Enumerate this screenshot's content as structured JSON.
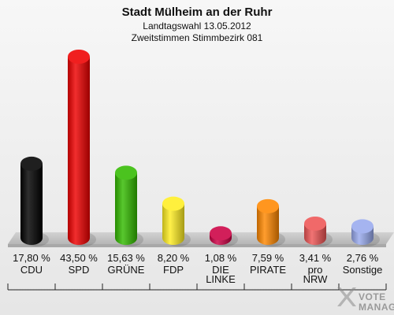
{
  "chart_data": {
    "type": "bar",
    "title": "Stadt Mülheim an der Ruhr",
    "subtitle_1": "Landtagswahl 13.05.2012",
    "subtitle_2": "Zweitstimmen Stimmbezirk 081",
    "categories": [
      "CDU",
      "SPD",
      "GRÜNE",
      "FDP",
      "DIE LINKE",
      "PIRATE",
      "pro NRW",
      "Sonstige"
    ],
    "category_lines": [
      [
        "CDU"
      ],
      [
        "SPD"
      ],
      [
        "GRÜNE"
      ],
      [
        "FDP"
      ],
      [
        "DIE",
        "LINKE"
      ],
      [
        "PIRATE"
      ],
      [
        "pro",
        "NRW"
      ],
      [
        "Sonstige"
      ]
    ],
    "values": [
      17.8,
      43.5,
      15.63,
      8.2,
      1.08,
      7.59,
      3.41,
      2.76
    ],
    "value_labels": [
      "17,80 %",
      "43,50 %",
      "15,63 %",
      "8,20 %",
      "1,08 %",
      "7,59 %",
      "3,41 %",
      "2,76 %"
    ],
    "colors": [
      "#000000",
      "#ee0000",
      "#33bb00",
      "#ffee22",
      "#cc0044",
      "#ff8800",
      "#ee5555",
      "#99aaee"
    ],
    "ylim": [
      0,
      43.5
    ],
    "grid": false,
    "legend": "none"
  },
  "branding": {
    "logo_text_1": "VOTE",
    "logo_text_2": "MANAGER"
  }
}
